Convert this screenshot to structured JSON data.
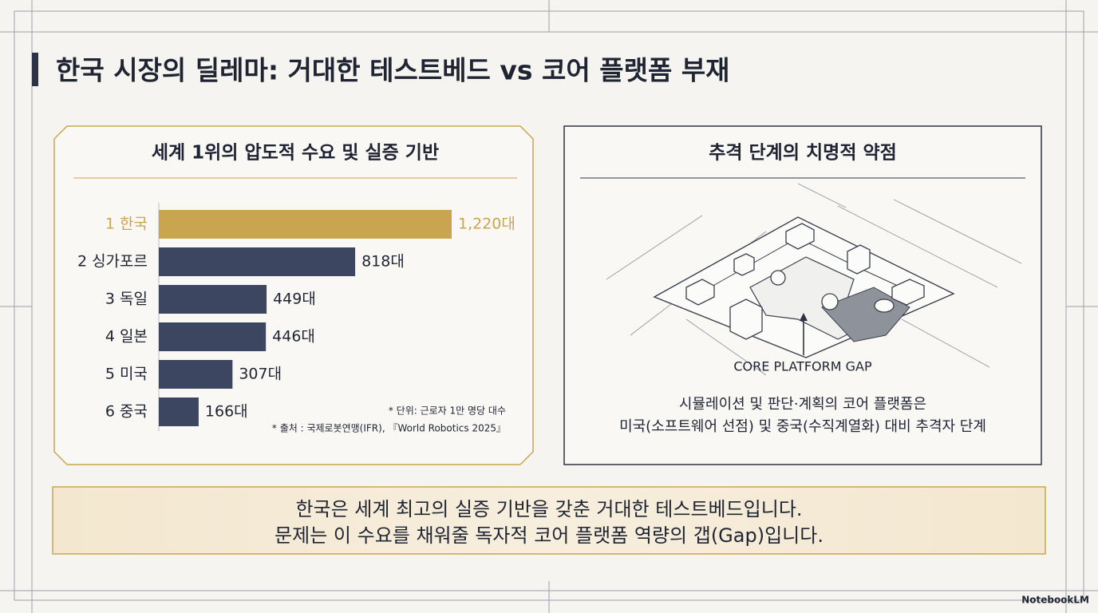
{
  "title": "한국 시장의 딜레마: 거대한 테스트베드 vs 코어 플랫폼 부재",
  "chart_data": {
    "type": "bar",
    "orientation": "horizontal",
    "title": "세계 1위의 압도적 수요 및 실증 기반",
    "categories": [
      "1 한국",
      "2 싱가포르",
      "3 독일",
      "4 일본",
      "5 미국",
      "6 중국"
    ],
    "values": [
      1220,
      818,
      449,
      446,
      307,
      166
    ],
    "value_labels": [
      "1,220대",
      "818대",
      "449대",
      "446대",
      "307대",
      "166대"
    ],
    "colors": [
      "#c9a54f",
      "#3c4660",
      "#3c4660",
      "#3c4660",
      "#3c4660",
      "#3c4660"
    ],
    "notes": [
      "* 단위: 근로자 1만 명당 대수",
      "* 출처 : 국제로봇연맹(IFR), 『World Robotics 2025』"
    ]
  },
  "right_panel": {
    "title": "추격 단계의 치명적 약점",
    "diagram_label": "CORE PLATFORM GAP",
    "caption": [
      "시뮬레이션 및 판단·계획의 코어 플랫폼은",
      "미국(소프트웨어 선점) 및 중국(수직계열화) 대비 추격자 단계"
    ]
  },
  "conclusion": [
    "한국은 세계 최고의 실증 기반을 갖춘 거대한 테스트베드입니다.",
    "문제는 이 수요를 채워줄 독자적 코어 플랫폼 역량의 갭(Gap)입니다."
  ],
  "brand": "NotebookLM"
}
